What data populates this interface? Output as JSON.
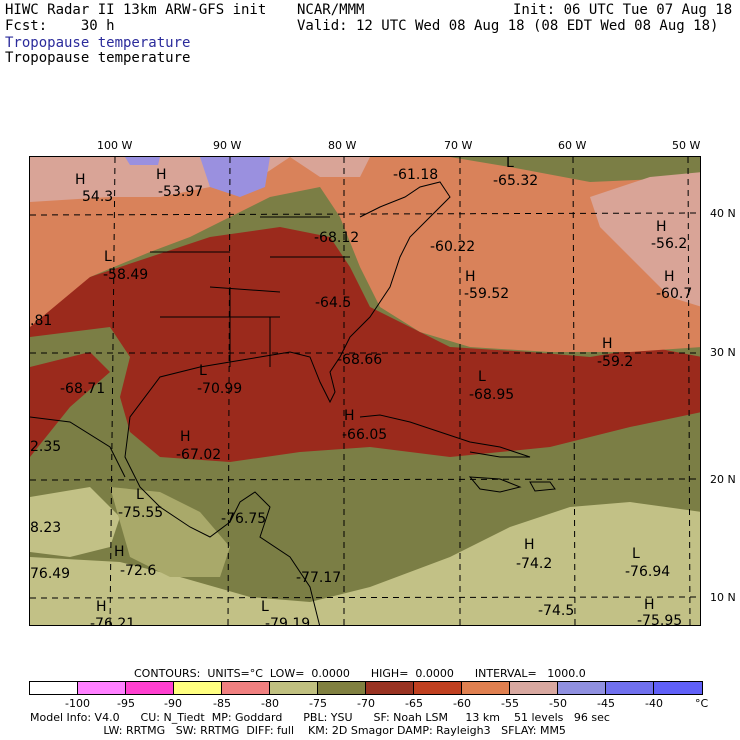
{
  "header": {
    "line1_left": "HIWC Radar II 13km ARW-GFS init",
    "line1_mid": "NCAR/MMM",
    "line1_right": "Init: 06 UTC Tue 07 Aug 18",
    "line2_left": "Fcst:    30 h",
    "line2_right": "Valid: 12 UTC Wed 08 Aug 18 (08 EDT Wed 08 Aug 18)",
    "field_title_blue": "Tropopause temperature",
    "field_title_black": "Tropopause temperature"
  },
  "axes": {
    "lon_labels": [
      "100 W",
      "90 W",
      "80 W",
      "70 W",
      "60 W",
      "50 W"
    ],
    "lat_labels": [
      "40 N",
      "30 N",
      "20 N",
      "10 N"
    ]
  },
  "map_labels": [
    {
      "letter": "H",
      "value": "54.3"
    },
    {
      "letter": "H",
      "value": "-53.97"
    },
    {
      "letter": "",
      "value": "-61.18"
    },
    {
      "letter": "L",
      "value": "-65.32"
    },
    {
      "letter": "",
      "value": "-68.12"
    },
    {
      "letter": "",
      "value": "-60.22"
    },
    {
      "letter": "H",
      "value": "-56.2"
    },
    {
      "letter": "L",
      "value": "-58.49"
    },
    {
      "letter": "H",
      "value": "-59.52"
    },
    {
      "letter": "H",
      "value": "-60.7"
    },
    {
      "letter": "",
      "value": "-64.5"
    },
    {
      "letter": "",
      "value": ".81"
    },
    {
      "letter": "",
      "value": "-68.66"
    },
    {
      "letter": "H",
      "value": "-59.2"
    },
    {
      "letter": "",
      "value": "-68.71"
    },
    {
      "letter": "L",
      "value": "-70.99"
    },
    {
      "letter": "L",
      "value": "-68.95"
    },
    {
      "letter": "H",
      "value": "-66.05"
    },
    {
      "letter": "",
      "value": "2.35"
    },
    {
      "letter": "H",
      "value": "-67.02"
    },
    {
      "letter": "L",
      "value": "-75.55"
    },
    {
      "letter": "",
      "value": "-76.75"
    },
    {
      "letter": "",
      "value": "8.23"
    },
    {
      "letter": "H",
      "value": "-72.6"
    },
    {
      "letter": "H",
      "value": "-74.2"
    },
    {
      "letter": "L",
      "value": "-76.94"
    },
    {
      "letter": "",
      "value": "76.49"
    },
    {
      "letter": "",
      "value": "-77.17"
    },
    {
      "letter": "H",
      "value": "-76.21"
    },
    {
      "letter": "L",
      "value": "-79.19"
    },
    {
      "letter": "",
      "value": "-74.5"
    },
    {
      "letter": "H",
      "value": "-75.95"
    }
  ],
  "footer": {
    "contours": "CONTOURS:  UNITS=°C  LOW=  0.0000      HIGH=  0.0000      INTERVAL=   1000.0",
    "scale_ticks": [
      "-100",
      "-95",
      "-90",
      "-85",
      "-80",
      "-75",
      "-70",
      "-65",
      "-60",
      "-55",
      "-50",
      "-45",
      "-40"
    ],
    "scale_unit": "°C",
    "scale_colors": [
      "#ffffff",
      "#ff80ff",
      "#ff40d0",
      "#ffff80",
      "#f08080",
      "#c0c080",
      "#808040",
      "#993322",
      "#c04020",
      "#e08050",
      "#d8a8a0",
      "#9090e0",
      "#7070ee",
      "#6060f8"
    ],
    "model_info_line1": "Model Info: V4.0      CU: N_Tiedt  MP: Goddard      PBL: YSU      SF: Noah LSM     13 km    51 levels   96 sec",
    "model_info_line2": "                     LW: RRTMG   SW: RRTMG  DIFF: full    KM: 2D Smagor DAMP: Rayleigh3   SFLAY: MM5"
  },
  "colors": {
    "dark_red": "#9b2a1c",
    "orange": "#d9825a",
    "pink": "#d9a497",
    "olive": "#7b7e45",
    "khaki": "#c2c186",
    "lavender": "#9a90df"
  }
}
